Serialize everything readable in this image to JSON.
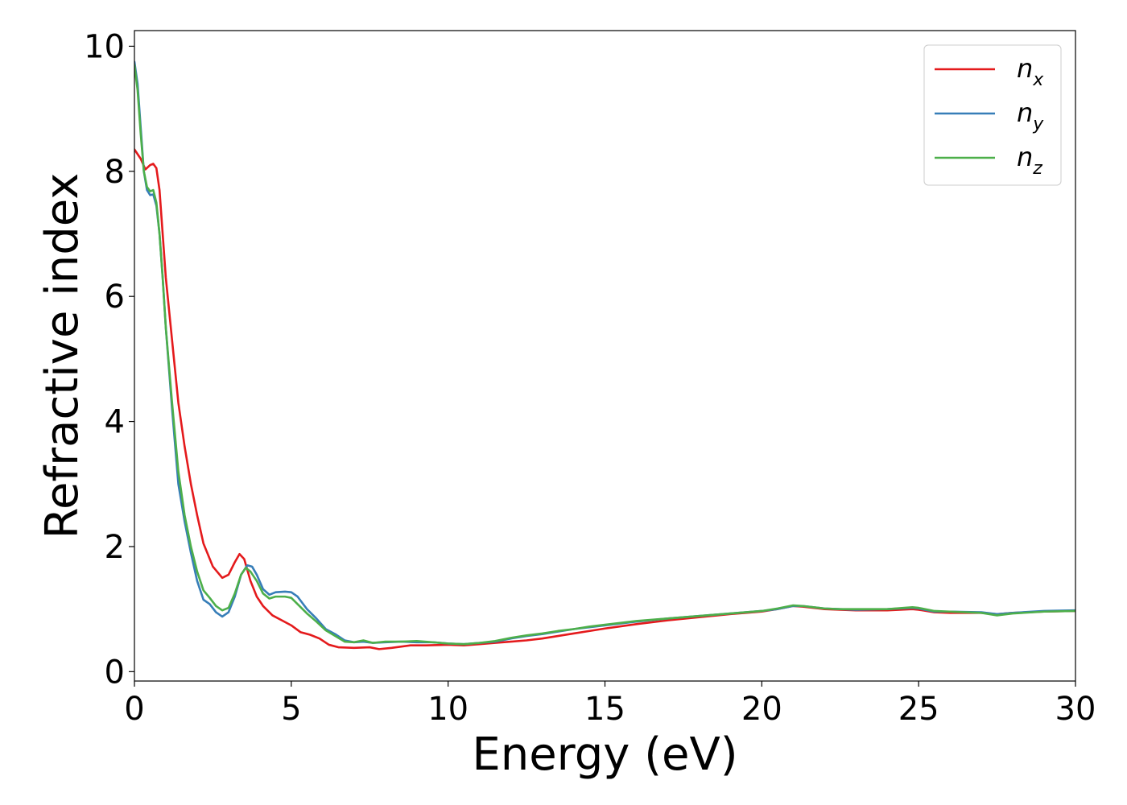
{
  "chart_data": {
    "type": "line",
    "xlabel": "Energy (eV)",
    "ylabel": "Refractive index",
    "xlim": [
      0,
      30
    ],
    "ylim": [
      -0.15,
      10.25
    ],
    "xticks": [
      "0",
      "5",
      "10",
      "15",
      "20",
      "25",
      "30"
    ],
    "yticks": [
      "0",
      "2",
      "4",
      "6",
      "8",
      "10"
    ],
    "grid": false,
    "legend": "upper right",
    "series": [
      {
        "name": "n_x",
        "label_base": "n",
        "label_sub": "x",
        "color": "#e41a1c",
        "points": [
          [
            0,
            8.35
          ],
          [
            0.2,
            8.2
          ],
          [
            0.35,
            8.03
          ],
          [
            0.5,
            8.1
          ],
          [
            0.6,
            8.12
          ],
          [
            0.7,
            8.05
          ],
          [
            0.8,
            7.7
          ],
          [
            0.9,
            7.0
          ],
          [
            1.0,
            6.3
          ],
          [
            1.2,
            5.3
          ],
          [
            1.4,
            4.3
          ],
          [
            1.6,
            3.6
          ],
          [
            1.8,
            3.0
          ],
          [
            2.0,
            2.5
          ],
          [
            2.2,
            2.05
          ],
          [
            2.5,
            1.68
          ],
          [
            2.8,
            1.5
          ],
          [
            3.0,
            1.55
          ],
          [
            3.2,
            1.75
          ],
          [
            3.35,
            1.88
          ],
          [
            3.5,
            1.8
          ],
          [
            3.7,
            1.45
          ],
          [
            3.9,
            1.2
          ],
          [
            4.1,
            1.05
          ],
          [
            4.4,
            0.9
          ],
          [
            4.7,
            0.82
          ],
          [
            5.0,
            0.74
          ],
          [
            5.3,
            0.63
          ],
          [
            5.6,
            0.59
          ],
          [
            5.9,
            0.53
          ],
          [
            6.2,
            0.43
          ],
          [
            6.5,
            0.39
          ],
          [
            7.0,
            0.38
          ],
          [
            7.5,
            0.39
          ],
          [
            7.8,
            0.36
          ],
          [
            8.2,
            0.38
          ],
          [
            8.8,
            0.42
          ],
          [
            9.3,
            0.42
          ],
          [
            10.0,
            0.43
          ],
          [
            10.5,
            0.42
          ],
          [
            11.0,
            0.44
          ],
          [
            11.5,
            0.46
          ],
          [
            12.0,
            0.48
          ],
          [
            12.5,
            0.5
          ],
          [
            13.0,
            0.53
          ],
          [
            13.5,
            0.57
          ],
          [
            14.0,
            0.61
          ],
          [
            14.5,
            0.65
          ],
          [
            15.0,
            0.69
          ],
          [
            16.0,
            0.76
          ],
          [
            17.0,
            0.82
          ],
          [
            18.0,
            0.87
          ],
          [
            19.0,
            0.92
          ],
          [
            20.0,
            0.96
          ],
          [
            20.5,
            1.0
          ],
          [
            21.0,
            1.05
          ],
          [
            21.3,
            1.04
          ],
          [
            22.0,
            1.0
          ],
          [
            22.5,
            0.99
          ],
          [
            23.0,
            0.98
          ],
          [
            24.0,
            0.98
          ],
          [
            24.8,
            1.0
          ],
          [
            25.0,
            0.99
          ],
          [
            25.5,
            0.95
          ],
          [
            26.0,
            0.94
          ],
          [
            27.0,
            0.94
          ],
          [
            27.5,
            0.92
          ],
          [
            28.0,
            0.94
          ],
          [
            29.0,
            0.96
          ],
          [
            30.0,
            0.97
          ]
        ]
      },
      {
        "name": "n_y",
        "label_base": "n",
        "label_sub": "y",
        "color": "#377eb8",
        "points": [
          [
            0,
            9.75
          ],
          [
            0.1,
            9.4
          ],
          [
            0.2,
            8.7
          ],
          [
            0.3,
            8.0
          ],
          [
            0.4,
            7.7
          ],
          [
            0.5,
            7.62
          ],
          [
            0.6,
            7.63
          ],
          [
            0.7,
            7.45
          ],
          [
            0.8,
            7.0
          ],
          [
            0.9,
            6.3
          ],
          [
            1.0,
            5.5
          ],
          [
            1.2,
            4.2
          ],
          [
            1.4,
            3.0
          ],
          [
            1.6,
            2.4
          ],
          [
            1.8,
            1.9
          ],
          [
            2.0,
            1.45
          ],
          [
            2.2,
            1.15
          ],
          [
            2.4,
            1.08
          ],
          [
            2.6,
            0.95
          ],
          [
            2.8,
            0.88
          ],
          [
            3.0,
            0.95
          ],
          [
            3.2,
            1.2
          ],
          [
            3.4,
            1.55
          ],
          [
            3.6,
            1.7
          ],
          [
            3.75,
            1.68
          ],
          [
            3.9,
            1.55
          ],
          [
            4.1,
            1.32
          ],
          [
            4.3,
            1.23
          ],
          [
            4.5,
            1.27
          ],
          [
            4.8,
            1.28
          ],
          [
            5.0,
            1.27
          ],
          [
            5.2,
            1.2
          ],
          [
            5.5,
            1.0
          ],
          [
            5.8,
            0.85
          ],
          [
            6.1,
            0.68
          ],
          [
            6.4,
            0.6
          ],
          [
            6.7,
            0.5
          ],
          [
            7.0,
            0.47
          ],
          [
            7.3,
            0.48
          ],
          [
            7.6,
            0.46
          ],
          [
            8.0,
            0.47
          ],
          [
            8.5,
            0.48
          ],
          [
            9.0,
            0.47
          ],
          [
            9.5,
            0.47
          ],
          [
            10.0,
            0.45
          ],
          [
            10.5,
            0.44
          ],
          [
            11.0,
            0.46
          ],
          [
            11.5,
            0.48
          ],
          [
            12.0,
            0.53
          ],
          [
            12.5,
            0.57
          ],
          [
            13.0,
            0.6
          ],
          [
            13.5,
            0.64
          ],
          [
            14.0,
            0.68
          ],
          [
            14.5,
            0.71
          ],
          [
            15.0,
            0.74
          ],
          [
            16.0,
            0.8
          ],
          [
            17.0,
            0.85
          ],
          [
            18.0,
            0.89
          ],
          [
            19.0,
            0.93
          ],
          [
            20.0,
            0.97
          ],
          [
            20.5,
            1.0
          ],
          [
            21.0,
            1.05
          ],
          [
            21.3,
            1.05
          ],
          [
            22.0,
            1.01
          ],
          [
            22.5,
            1.0
          ],
          [
            23.0,
            0.99
          ],
          [
            24.0,
            1.0
          ],
          [
            24.8,
            1.02
          ],
          [
            25.0,
            1.01
          ],
          [
            25.5,
            0.96
          ],
          [
            26.0,
            0.96
          ],
          [
            27.0,
            0.95
          ],
          [
            27.5,
            0.92
          ],
          [
            28.0,
            0.94
          ],
          [
            29.0,
            0.97
          ],
          [
            30.0,
            0.98
          ]
        ]
      },
      {
        "name": "n_z",
        "label_base": "n",
        "label_sub": "z",
        "color": "#4daf4a",
        "points": [
          [
            0,
            9.7
          ],
          [
            0.1,
            9.3
          ],
          [
            0.2,
            8.6
          ],
          [
            0.3,
            8.0
          ],
          [
            0.4,
            7.75
          ],
          [
            0.5,
            7.68
          ],
          [
            0.6,
            7.7
          ],
          [
            0.7,
            7.5
          ],
          [
            0.8,
            7.0
          ],
          [
            0.9,
            6.3
          ],
          [
            1.0,
            5.5
          ],
          [
            1.2,
            4.3
          ],
          [
            1.4,
            3.2
          ],
          [
            1.6,
            2.5
          ],
          [
            1.8,
            2.0
          ],
          [
            2.0,
            1.6
          ],
          [
            2.2,
            1.3
          ],
          [
            2.4,
            1.18
          ],
          [
            2.6,
            1.05
          ],
          [
            2.8,
            0.98
          ],
          [
            3.0,
            1.02
          ],
          [
            3.2,
            1.25
          ],
          [
            3.4,
            1.55
          ],
          [
            3.55,
            1.66
          ],
          [
            3.7,
            1.6
          ],
          [
            3.9,
            1.45
          ],
          [
            4.1,
            1.25
          ],
          [
            4.3,
            1.17
          ],
          [
            4.5,
            1.2
          ],
          [
            4.8,
            1.2
          ],
          [
            5.0,
            1.18
          ],
          [
            5.2,
            1.08
          ],
          [
            5.5,
            0.93
          ],
          [
            5.8,
            0.8
          ],
          [
            6.1,
            0.66
          ],
          [
            6.4,
            0.57
          ],
          [
            6.7,
            0.48
          ],
          [
            7.0,
            0.47
          ],
          [
            7.3,
            0.5
          ],
          [
            7.6,
            0.46
          ],
          [
            8.0,
            0.48
          ],
          [
            8.5,
            0.48
          ],
          [
            9.0,
            0.49
          ],
          [
            9.5,
            0.47
          ],
          [
            10.0,
            0.45
          ],
          [
            10.5,
            0.44
          ],
          [
            11.0,
            0.46
          ],
          [
            11.5,
            0.49
          ],
          [
            12.0,
            0.54
          ],
          [
            12.5,
            0.58
          ],
          [
            13.0,
            0.61
          ],
          [
            13.5,
            0.65
          ],
          [
            14.0,
            0.68
          ],
          [
            14.5,
            0.72
          ],
          [
            15.0,
            0.75
          ],
          [
            16.0,
            0.81
          ],
          [
            17.0,
            0.85
          ],
          [
            18.0,
            0.89
          ],
          [
            19.0,
            0.93
          ],
          [
            20.0,
            0.97
          ],
          [
            20.5,
            1.01
          ],
          [
            21.0,
            1.06
          ],
          [
            21.3,
            1.05
          ],
          [
            22.0,
            1.01
          ],
          [
            22.5,
            1.0
          ],
          [
            23.0,
            1.0
          ],
          [
            24.0,
            1.0
          ],
          [
            24.8,
            1.03
          ],
          [
            25.0,
            1.02
          ],
          [
            25.5,
            0.97
          ],
          [
            26.0,
            0.96
          ],
          [
            27.0,
            0.94
          ],
          [
            27.5,
            0.9
          ],
          [
            28.0,
            0.93
          ],
          [
            29.0,
            0.96
          ],
          [
            30.0,
            0.97
          ]
        ]
      }
    ]
  }
}
